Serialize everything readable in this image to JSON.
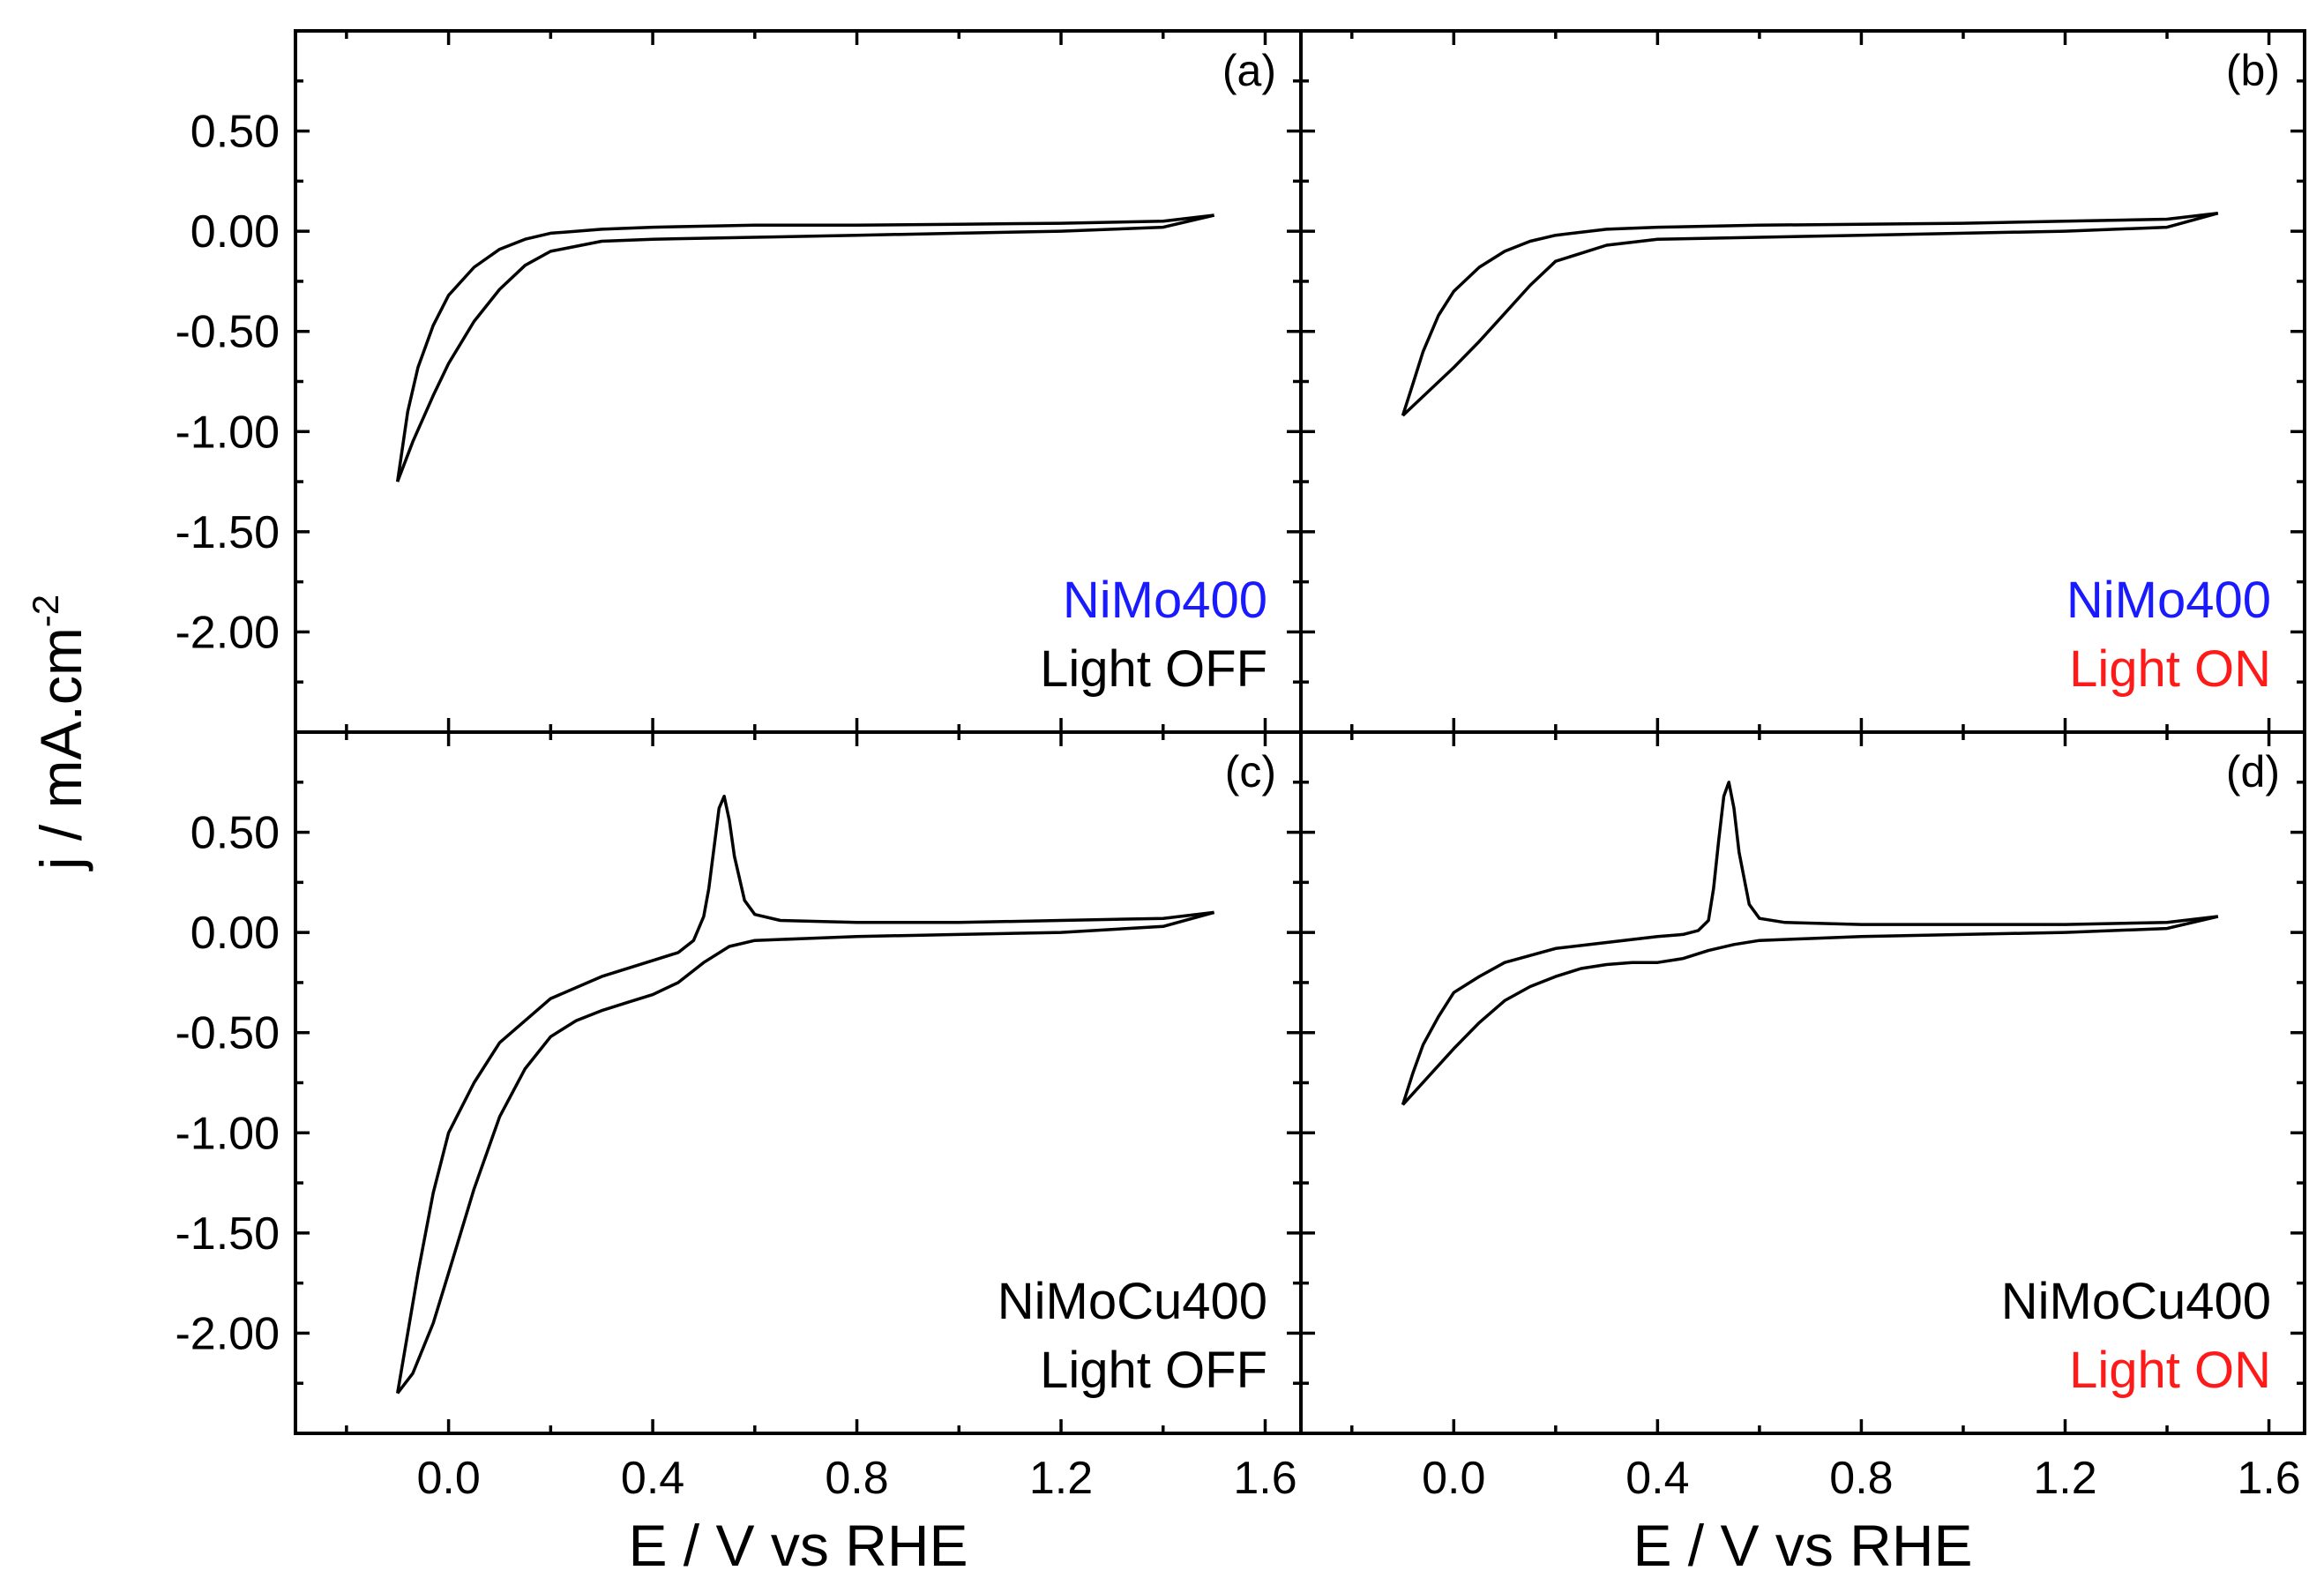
{
  "chart_data": {
    "type": "line",
    "layout": "2x2 shared axes",
    "xlabel": "E / V vs RHE",
    "ylabel": "j / mA.cm",
    "ylabel_sup": "-2",
    "xlim": [
      -0.3,
      1.67
    ],
    "ylim": [
      -2.5,
      1.0
    ],
    "x_ticks": [
      0.0,
      0.4,
      0.8,
      1.2,
      1.6
    ],
    "x_tick_labels": [
      "0.0",
      "0.4",
      "0.8",
      "1.2",
      "1.6"
    ],
    "y_ticks": [
      0.5,
      0.0,
      -0.5,
      -1.0,
      -1.5,
      -2.0
    ],
    "y_tick_labels": [
      "0.50",
      "0.00",
      "-0.50",
      "-1.00",
      "-1.50",
      "-2.00"
    ],
    "panels": [
      {
        "tag": "(a)",
        "sample": "NiMo400",
        "light": "Light OFF",
        "sample_color": "#1a1aff",
        "light_color": "#000000",
        "forward": {
          "x": [
            -0.1,
            -0.07,
            -0.03,
            0.0,
            0.05,
            0.1,
            0.15,
            0.2,
            0.3,
            0.4,
            0.6,
            0.8,
            1.0,
            1.2,
            1.4,
            1.5
          ],
          "y": [
            -1.25,
            -1.05,
            -0.82,
            -0.66,
            -0.45,
            -0.29,
            -0.17,
            -0.1,
            -0.05,
            -0.04,
            -0.03,
            -0.02,
            -0.01,
            0.0,
            0.02,
            0.08
          ]
        },
        "reverse": {
          "x": [
            1.5,
            1.4,
            1.2,
            1.0,
            0.8,
            0.6,
            0.4,
            0.3,
            0.2,
            0.15,
            0.1,
            0.05,
            0.0,
            -0.03,
            -0.06,
            -0.08,
            -0.1
          ],
          "y": [
            0.08,
            0.05,
            0.04,
            0.035,
            0.03,
            0.03,
            0.02,
            0.01,
            -0.01,
            -0.04,
            -0.09,
            -0.18,
            -0.32,
            -0.47,
            -0.68,
            -0.9,
            -1.25
          ]
        }
      },
      {
        "tag": "(b)",
        "sample": "NiMo400",
        "light": "Light ON",
        "sample_color": "#1a1aff",
        "light_color": "#ff1a1a",
        "forward": {
          "x": [
            -0.1,
            -0.05,
            0.0,
            0.05,
            0.1,
            0.15,
            0.2,
            0.3,
            0.4,
            0.6,
            0.8,
            1.0,
            1.2,
            1.4,
            1.5
          ],
          "y": [
            -0.92,
            -0.8,
            -0.68,
            -0.55,
            -0.41,
            -0.27,
            -0.15,
            -0.07,
            -0.04,
            -0.03,
            -0.02,
            -0.01,
            0.0,
            0.02,
            0.09
          ]
        },
        "reverse": {
          "x": [
            1.5,
            1.4,
            1.2,
            1.0,
            0.8,
            0.6,
            0.4,
            0.3,
            0.2,
            0.15,
            0.1,
            0.05,
            0.0,
            -0.03,
            -0.06,
            -0.08,
            -0.1
          ],
          "y": [
            0.09,
            0.06,
            0.05,
            0.04,
            0.035,
            0.03,
            0.02,
            0.01,
            -0.02,
            -0.05,
            -0.1,
            -0.18,
            -0.3,
            -0.42,
            -0.6,
            -0.76,
            -0.92
          ]
        }
      },
      {
        "tag": "(c)",
        "sample": "NiMoCu400",
        "light": "Light OFF",
        "sample_color": "#000000",
        "light_color": "#000000",
        "forward": {
          "x": [
            -0.1,
            -0.07,
            -0.03,
            0.0,
            0.05,
            0.1,
            0.15,
            0.2,
            0.25,
            0.3,
            0.35,
            0.4,
            0.45,
            0.5,
            0.55,
            0.6,
            0.7,
            0.8,
            1.0,
            1.2,
            1.4,
            1.5
          ],
          "y": [
            -2.3,
            -2.2,
            -1.95,
            -1.7,
            -1.28,
            -0.92,
            -0.68,
            -0.52,
            -0.44,
            -0.39,
            -0.35,
            -0.31,
            -0.25,
            -0.15,
            -0.07,
            -0.04,
            -0.03,
            -0.02,
            -0.01,
            0.0,
            0.03,
            0.1
          ]
        },
        "reverse": {
          "x": [
            1.5,
            1.4,
            1.2,
            1.0,
            0.8,
            0.65,
            0.6,
            0.58,
            0.56,
            0.55,
            0.54,
            0.53,
            0.52,
            0.51,
            0.5,
            0.48,
            0.45,
            0.4,
            0.3,
            0.2,
            0.1,
            0.05,
            0.0,
            -0.03,
            -0.06,
            -0.08,
            -0.1
          ],
          "y": [
            0.1,
            0.07,
            0.06,
            0.05,
            0.05,
            0.06,
            0.09,
            0.16,
            0.38,
            0.56,
            0.68,
            0.62,
            0.42,
            0.22,
            0.08,
            -0.04,
            -0.1,
            -0.14,
            -0.22,
            -0.33,
            -0.55,
            -0.75,
            -1.0,
            -1.3,
            -1.7,
            -2.0,
            -2.3
          ]
        }
      },
      {
        "tag": "(d)",
        "sample": "NiMoCu400",
        "light": "Light ON",
        "sample_color": "#000000",
        "light_color": "#ff1a1a",
        "forward": {
          "x": [
            -0.1,
            -0.05,
            0.0,
            0.05,
            0.1,
            0.15,
            0.2,
            0.25,
            0.3,
            0.35,
            0.4,
            0.45,
            0.5,
            0.55,
            0.6,
            0.7,
            0.8,
            1.0,
            1.2,
            1.4,
            1.5
          ],
          "y": [
            -0.86,
            -0.72,
            -0.58,
            -0.45,
            -0.34,
            -0.27,
            -0.22,
            -0.18,
            -0.16,
            -0.15,
            -0.15,
            -0.13,
            -0.09,
            -0.06,
            -0.04,
            -0.03,
            -0.02,
            -0.01,
            0.0,
            0.02,
            0.08
          ]
        },
        "reverse": {
          "x": [
            1.5,
            1.4,
            1.2,
            1.0,
            0.8,
            0.65,
            0.6,
            0.58,
            0.56,
            0.55,
            0.54,
            0.53,
            0.52,
            0.51,
            0.5,
            0.48,
            0.45,
            0.4,
            0.3,
            0.2,
            0.1,
            0.05,
            0.0,
            -0.03,
            -0.06,
            -0.08,
            -0.1
          ],
          "y": [
            0.08,
            0.05,
            0.04,
            0.04,
            0.04,
            0.05,
            0.07,
            0.14,
            0.4,
            0.62,
            0.75,
            0.68,
            0.46,
            0.22,
            0.06,
            0.01,
            -0.01,
            -0.02,
            -0.05,
            -0.08,
            -0.15,
            -0.22,
            -0.3,
            -0.42,
            -0.56,
            -0.7,
            -0.86
          ]
        }
      }
    ]
  }
}
